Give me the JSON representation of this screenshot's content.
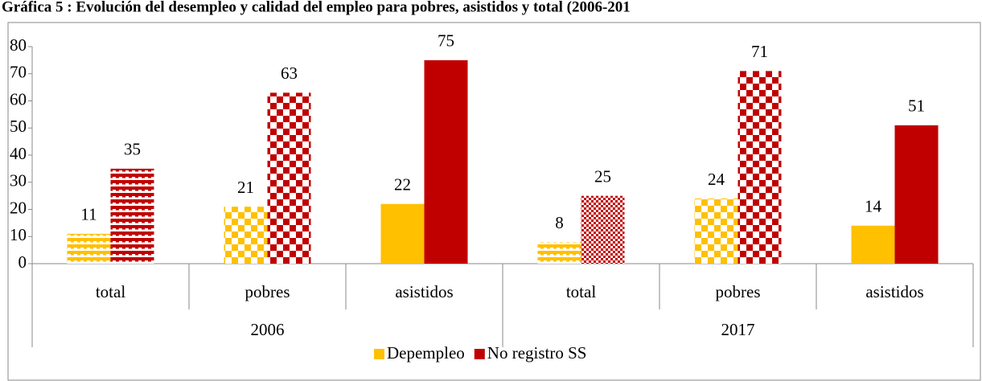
{
  "chart_data": {
    "type": "bar",
    "title": "Gráfica 5 : Evolución del desempleo y calidad del empleo para pobres, asistidos y total (2006-201",
    "categories": [
      "total",
      "pobres",
      "asistidos",
      "total",
      "pobres",
      "asistidos"
    ],
    "groups": [
      "2006",
      "2017"
    ],
    "series": [
      {
        "name": "Depempleo",
        "color": "#FFC000",
        "values": [
          11,
          21,
          22,
          8,
          24,
          14
        ],
        "patterns": [
          "stripes",
          "checker",
          "solid",
          "stripes",
          "checker",
          "solid"
        ]
      },
      {
        "name": "No registro SS",
        "color": "#C00000",
        "values": [
          35,
          63,
          75,
          25,
          71,
          51
        ],
        "patterns": [
          "stripes",
          "checker",
          "solid",
          "fine",
          "checker",
          "solid"
        ]
      }
    ],
    "ylim": [
      0,
      80
    ],
    "yticks": [
      0,
      10,
      20,
      30,
      40,
      50,
      60,
      70,
      80
    ],
    "legend": "bottom"
  }
}
